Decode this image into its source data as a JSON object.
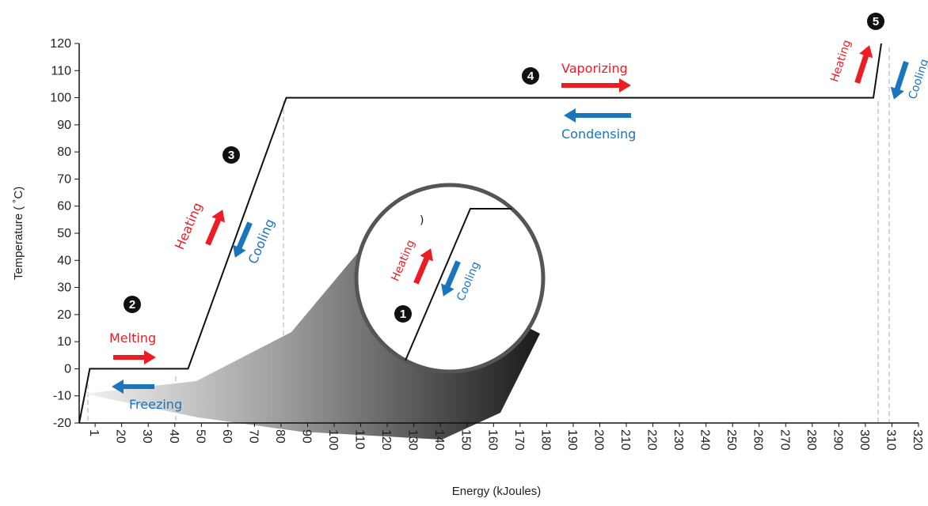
{
  "chart_data": {
    "type": "line",
    "xlabel": "Energy (kJoules)",
    "ylabel": "Temperature ( ˚C)",
    "xlim": [
      4,
      320
    ],
    "ylim": [
      -20,
      120
    ],
    "x_ticks": [
      "1",
      "20",
      "30",
      "40",
      "50",
      "60",
      "70",
      "80",
      "90",
      "100",
      "110",
      "120",
      "130",
      "140",
      "150",
      "160",
      "170",
      "180",
      "190",
      "200",
      "210",
      "220",
      "230",
      "240",
      "250",
      "260",
      "270",
      "280",
      "290",
      "300",
      "310",
      "320"
    ],
    "y_ticks": [
      "120",
      "110",
      "100",
      "90",
      "80",
      "70",
      "60",
      "50",
      "40",
      "30",
      "20",
      "10",
      "0",
      "-10",
      "-20"
    ],
    "series": [
      {
        "x": [
          4,
          8,
          45,
          82,
          303,
          306
        ],
        "y": [
          -20,
          0,
          0,
          100,
          100,
          120
        ]
      }
    ],
    "annotations": {
      "melting": "Melting",
      "freezing": "Freezing",
      "vaporizing": "Vaporizing",
      "condensing": "Condensing",
      "heating": "Heating",
      "cooling": "Cooling",
      "inset_mark": ")"
    },
    "badges": [
      "1",
      "2",
      "3",
      "4",
      "5"
    ],
    "colors": {
      "heat": "#ec1c24",
      "cool": "#1b75bc",
      "line": "#111111",
      "guide": "#c8c8c8"
    }
  }
}
